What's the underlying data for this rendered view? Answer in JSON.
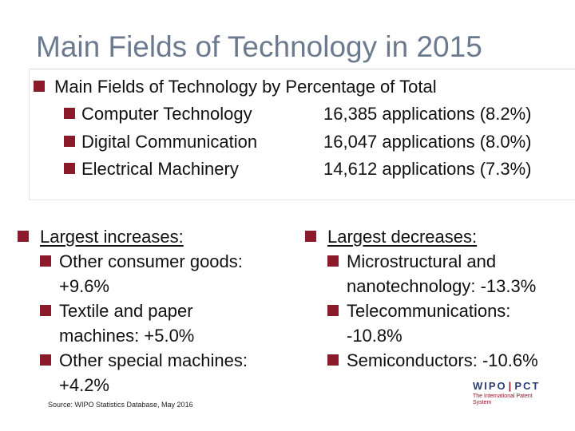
{
  "slide": {
    "title": "Main Fields of Technology in 2015",
    "summary_heading": "Main Fields of Technology by Percentage of Total",
    "fields": [
      {
        "name": "Computer Technology",
        "value": "16,385 applications (8.2%)"
      },
      {
        "name": "Digital Communication",
        "value": "16,047 applications (8.0%)"
      },
      {
        "name": "Electrical Machinery",
        "value": "14,612 applications (7.3%)"
      }
    ],
    "increases": {
      "heading": "Largest increases:",
      "items": [
        "Other consumer goods: +9.6%",
        "Textile and paper machines: +5.0%",
        "Other special machines: +4.2%"
      ]
    },
    "decreases": {
      "heading": "Largest decreases:",
      "items": [
        "Microstructural and nanotechnology: -13.3%",
        "Telecommunications: -10.8%",
        "Semiconductors: -10.6%"
      ]
    },
    "source": "Source: WIPO Statistics Database, May 2016",
    "logo": {
      "left": "WIPO",
      "right": "PCT",
      "tagline": "The International Patent System"
    }
  },
  "colors": {
    "bullet": "#8b1a2b",
    "title": "#6b7a8f",
    "logo_blue": "#2d3f73"
  }
}
